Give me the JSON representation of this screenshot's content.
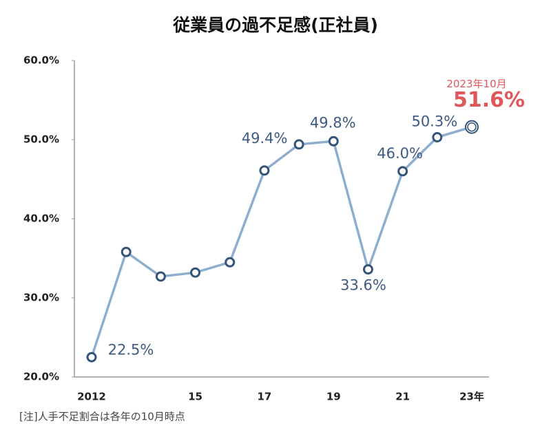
{
  "chart_data": {
    "type": "line",
    "title": "従業員の過不足感(正社員)",
    "categories": [
      "2012",
      null,
      null,
      "15",
      null,
      "17",
      null,
      "19",
      null,
      "21",
      null,
      "23年"
    ],
    "series": [
      {
        "name": "人手不足割合",
        "color": "#8eaed0",
        "marker_color": "#34547a",
        "values": [
          22.5,
          35.8,
          32.7,
          33.2,
          34.5,
          46.1,
          49.4,
          49.8,
          33.6,
          46.0,
          50.3,
          51.6
        ],
        "value_labels": [
          "22.5%",
          null,
          null,
          null,
          null,
          null,
          "49.4%",
          "49.8%",
          "33.6%",
          "46.0%",
          "50.3%",
          "51.6%"
        ]
      }
    ],
    "label_color": "#3d5a80",
    "highlight_color": "#e0575b",
    "annotation": "2023年10月",
    "ylim": [
      20,
      60
    ],
    "yticks": [
      {
        "value": 20,
        "label": "20.0%"
      },
      {
        "value": 30,
        "label": "30.0%"
      },
      {
        "value": 40,
        "label": "40.0%"
      },
      {
        "value": 50,
        "label": "50.0%"
      },
      {
        "value": 60,
        "label": "60.0%"
      }
    ],
    "grid": false,
    "note": "[注]人手不足割合は各年の10月時点"
  }
}
